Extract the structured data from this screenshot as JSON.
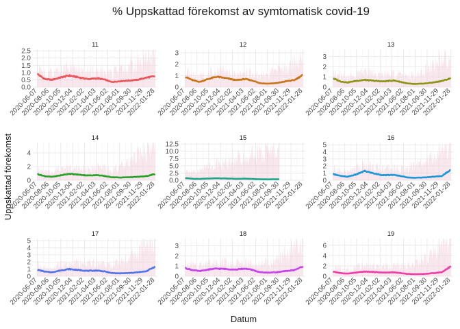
{
  "chart_data": {
    "type": "line",
    "title": "% Uppskattad förekomst av symtomatisk covid-19",
    "xlabel": "Datum",
    "ylabel": "Uppskattad förekomst",
    "x_ticks": [
      "2020-06-07",
      "2020-08-06",
      "2020-10-05",
      "2020-12-04",
      "2021-02-02",
      "2021-04-03",
      "2021-06-02",
      "2021-08-01",
      "2021-09-30",
      "2021-11-29",
      "2022-01-28"
    ],
    "x_range": [
      "2020-05-15",
      "2022-02-10"
    ],
    "grid": true,
    "legend": "none",
    "series": [
      {
        "name": "11",
        "color": "#E8585C",
        "ylim": [
          0,
          2.6
        ],
        "yticks": [
          "0.0",
          "0.5",
          "1.0",
          "1.5",
          "2.0",
          "2.5"
        ],
        "ribbon_color": "#F4CFDD",
        "end": "2022-01-28",
        "x": [
          "2020-06-07",
          "2020-07-15",
          "2020-08-20",
          "2020-10-01",
          "2020-11-15",
          "2021-01-10",
          "2021-02-20",
          "2021-04-10",
          "2021-05-20",
          "2021-06-20",
          "2021-08-01",
          "2021-09-20",
          "2021-11-01",
          "2021-12-15",
          "2022-01-28"
        ],
        "values": [
          0.9,
          0.55,
          0.5,
          0.65,
          0.8,
          0.65,
          0.55,
          0.6,
          0.5,
          0.35,
          0.4,
          0.45,
          0.5,
          0.65,
          0.75
        ],
        "upper": [
          1.3,
          0.95,
          0.9,
          1.1,
          1.2,
          1.1,
          1.0,
          1.1,
          1.0,
          0.9,
          1.1,
          1.4,
          1.6,
          2.0,
          2.1
        ]
      },
      {
        "name": "12",
        "color": "#C8761C",
        "ylim": [
          0,
          3.3
        ],
        "yticks": [
          "0",
          "1",
          "2",
          "3"
        ],
        "ribbon_color": "#F4CFDD",
        "end": "2022-01-28",
        "x": [
          "2020-06-07",
          "2020-07-15",
          "2020-08-20",
          "2020-10-01",
          "2020-11-15",
          "2021-01-10",
          "2021-02-20",
          "2021-04-10",
          "2021-05-20",
          "2021-06-20",
          "2021-08-01",
          "2021-09-20",
          "2021-11-01",
          "2021-12-15",
          "2022-01-28"
        ],
        "values": [
          0.9,
          0.6,
          0.45,
          0.7,
          0.9,
          0.75,
          0.6,
          0.7,
          0.55,
          0.35,
          0.3,
          0.35,
          0.5,
          0.6,
          1.05
        ],
        "upper": [
          1.4,
          1.1,
          0.9,
          1.2,
          1.4,
          1.3,
          1.2,
          1.3,
          1.2,
          1.0,
          1.1,
          1.4,
          1.8,
          2.2,
          2.6
        ]
      },
      {
        "name": "13",
        "color": "#8C9515",
        "ylim": [
          0,
          3.7
        ],
        "yticks": [
          "0",
          "1",
          "2",
          "3"
        ],
        "ribbon_color": "#F4CFDD",
        "end": "2022-01-28",
        "x": [
          "2020-06-07",
          "2020-07-15",
          "2020-08-20",
          "2020-10-01",
          "2020-11-15",
          "2021-01-10",
          "2021-02-20",
          "2021-04-10",
          "2021-05-20",
          "2021-06-20",
          "2021-08-01",
          "2021-09-20",
          "2021-11-01",
          "2021-12-15",
          "2022-01-28"
        ],
        "values": [
          0.85,
          0.55,
          0.45,
          0.6,
          0.7,
          0.6,
          0.55,
          0.65,
          0.5,
          0.35,
          0.3,
          0.35,
          0.45,
          0.6,
          0.85
        ],
        "upper": [
          1.4,
          1.1,
          1.0,
          1.2,
          1.4,
          1.3,
          1.2,
          1.3,
          1.2,
          1.0,
          1.2,
          1.6,
          2.2,
          2.8,
          3.2
        ]
      },
      {
        "name": "14",
        "color": "#2AA12A",
        "ylim": [
          0,
          5.5
        ],
        "yticks": [
          "0",
          "2",
          "4"
        ],
        "ribbon_color": "#F4CFDD",
        "end": "2022-01-28",
        "x": [
          "2020-06-07",
          "2020-07-15",
          "2020-08-20",
          "2020-10-01",
          "2020-11-15",
          "2021-01-10",
          "2021-02-20",
          "2021-04-10",
          "2021-05-20",
          "2021-06-20",
          "2021-08-01",
          "2021-09-20",
          "2021-11-01",
          "2021-12-15",
          "2022-01-28"
        ],
        "values": [
          0.9,
          0.6,
          0.5,
          0.7,
          0.95,
          0.8,
          0.7,
          0.75,
          0.6,
          0.45,
          0.4,
          0.45,
          0.5,
          0.6,
          0.9
        ],
        "upper": [
          1.6,
          1.3,
          1.2,
          1.5,
          1.8,
          1.7,
          1.6,
          1.8,
          1.7,
          1.6,
          2.0,
          2.6,
          3.4,
          4.2,
          5.0
        ]
      },
      {
        "name": "15",
        "color": "#1EA68A",
        "ylim": [
          0,
          13
        ],
        "yticks": [
          "0.0",
          "2.5",
          "5.0",
          "7.5",
          "10.0",
          "12.5"
        ],
        "ribbon_color": "#F4CFDD",
        "end": "2021-10-01",
        "x": [
          "2020-06-07",
          "2020-07-15",
          "2020-08-20",
          "2020-10-01",
          "2020-11-15",
          "2021-01-10",
          "2021-02-20",
          "2021-04-10",
          "2021-05-20",
          "2021-06-20",
          "2021-08-01",
          "2021-10-01"
        ],
        "values": [
          0.8,
          0.5,
          0.45,
          0.6,
          0.7,
          0.6,
          0.5,
          0.55,
          0.45,
          0.35,
          0.3,
          0.35
        ],
        "upper": [
          3.5,
          3.0,
          3.2,
          4.5,
          5.5,
          6.5,
          7.0,
          8.0,
          9.0,
          9.5,
          10.0,
          10.5
        ]
      },
      {
        "name": "16",
        "color": "#1E97D6",
        "ylim": [
          0,
          5.3
        ],
        "yticks": [
          "0",
          "1",
          "2",
          "3",
          "4",
          "5"
        ],
        "ribbon_color": "#F4CFDD",
        "end": "2022-01-28",
        "x": [
          "2020-06-07",
          "2020-07-15",
          "2020-08-20",
          "2020-10-01",
          "2020-11-15",
          "2021-01-10",
          "2021-02-20",
          "2021-04-10",
          "2021-05-20",
          "2021-06-20",
          "2021-08-01",
          "2021-09-20",
          "2021-11-01",
          "2021-12-15",
          "2022-01-28"
        ],
        "values": [
          0.9,
          0.6,
          0.5,
          0.8,
          1.3,
          0.9,
          0.7,
          0.75,
          0.6,
          0.4,
          0.35,
          0.4,
          0.5,
          0.6,
          1.5
        ],
        "upper": [
          1.6,
          1.3,
          1.2,
          1.6,
          2.1,
          1.8,
          1.6,
          1.8,
          1.7,
          1.6,
          2.0,
          2.6,
          3.2,
          4.0,
          4.8
        ]
      },
      {
        "name": "17",
        "color": "#5275E8",
        "ylim": [
          0,
          5.3
        ],
        "yticks": [
          "0",
          "1",
          "2",
          "3",
          "4",
          "5"
        ],
        "ribbon_color": "#F4CFDD",
        "end": "2022-01-28",
        "x": [
          "2020-06-07",
          "2020-07-15",
          "2020-08-20",
          "2020-10-01",
          "2020-11-15",
          "2021-01-10",
          "2021-02-20",
          "2021-04-10",
          "2021-05-20",
          "2021-06-20",
          "2021-08-01",
          "2021-09-20",
          "2021-11-01",
          "2021-12-15",
          "2022-01-28"
        ],
        "values": [
          0.9,
          0.65,
          0.55,
          0.8,
          1.0,
          0.85,
          0.75,
          0.8,
          0.65,
          0.45,
          0.4,
          0.45,
          0.55,
          0.7,
          1.35
        ],
        "upper": [
          1.6,
          1.3,
          1.2,
          1.6,
          1.9,
          1.8,
          1.7,
          1.8,
          1.7,
          1.6,
          2.0,
          2.6,
          3.4,
          4.2,
          5.0
        ]
      },
      {
        "name": "18",
        "color": "#C744E8",
        "ylim": [
          0,
          3.7
        ],
        "yticks": [
          "0",
          "1",
          "2",
          "3"
        ],
        "ribbon_color": "#F4CFDD",
        "end": "2022-01-28",
        "x": [
          "2020-06-07",
          "2020-07-15",
          "2020-08-20",
          "2020-10-01",
          "2020-11-15",
          "2021-01-10",
          "2021-02-20",
          "2021-04-10",
          "2021-05-20",
          "2021-06-20",
          "2021-08-01",
          "2021-09-20",
          "2021-11-01",
          "2021-12-15",
          "2022-01-28"
        ],
        "values": [
          0.8,
          0.6,
          0.5,
          0.65,
          0.75,
          0.7,
          0.65,
          0.75,
          0.6,
          0.4,
          0.35,
          0.4,
          0.5,
          0.6,
          0.95
        ],
        "upper": [
          1.3,
          1.1,
          1.0,
          1.2,
          1.4,
          1.3,
          1.2,
          1.3,
          1.2,
          1.1,
          1.3,
          1.7,
          2.2,
          2.7,
          3.0
        ]
      },
      {
        "name": "19",
        "color": "#EE3EA8",
        "ylim": [
          0,
          7.3
        ],
        "yticks": [
          "0",
          "2",
          "4",
          "6"
        ],
        "ribbon_color": "#F4CFDD",
        "end": "2022-01-28",
        "x": [
          "2020-06-07",
          "2020-07-15",
          "2020-08-20",
          "2020-10-01",
          "2020-11-15",
          "2021-01-10",
          "2021-02-20",
          "2021-04-10",
          "2021-05-20",
          "2021-06-20",
          "2021-08-01",
          "2021-09-20",
          "2021-11-01",
          "2021-12-15",
          "2022-01-28"
        ],
        "values": [
          0.9,
          0.6,
          0.5,
          0.7,
          0.9,
          0.8,
          0.7,
          0.75,
          0.6,
          0.45,
          0.4,
          0.45,
          0.6,
          0.8,
          1.9
        ],
        "upper": [
          1.8,
          1.5,
          1.4,
          1.8,
          2.1,
          2.0,
          1.9,
          2.1,
          2.0,
          1.9,
          2.4,
          3.2,
          4.2,
          5.4,
          6.5
        ]
      }
    ]
  }
}
